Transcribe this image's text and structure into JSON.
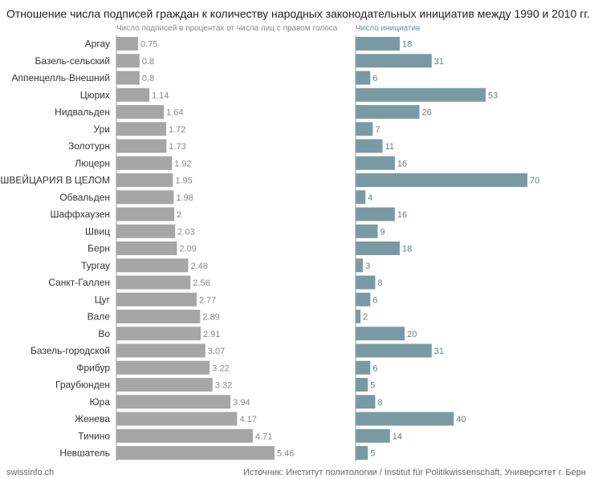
{
  "title": "Отношение числа подписей граждан к количеству народных законодательных инициатив между 1990 и 2010 гг.",
  "footer": {
    "left": "swissinfo.ch",
    "right": "Источник: Институт политологии / Institut für Politikwissenschaft, Университет г. Берн"
  },
  "colors": {
    "left_bar": "#a6a6a6",
    "right_bar": "#7a9aa3",
    "axis": "#999999"
  },
  "chart_data": {
    "type": "bar",
    "orientation": "horizontal",
    "categories": [
      "Аргау",
      "Базель-сельский",
      "Аппенцелль-Внешний",
      "Цюрих",
      "Нидвальден",
      "Ури",
      "Золотурн",
      "Люцерн",
      "ШВЕЙЦАРИЯ В ЦЕЛОМ",
      "Обвальден",
      "Шаффхаузен",
      "Швиц",
      "Берн",
      "Тургау",
      "Санкт-Галлен",
      "Цуг",
      "Вале",
      "Во",
      "Базель-городской",
      "Фрибур",
      "Граубюнден",
      "Юра",
      "Женева",
      "Тичино",
      "Невшатель"
    ],
    "series": [
      {
        "name": "Число подписей в процентах от числа лиц с правом голоса",
        "labels": [
          "0.75",
          "0.8",
          "0.8",
          "1.14",
          "1.64",
          "1.72",
          "1.73",
          "1.92",
          "1.95",
          "1.98",
          "2",
          "2.03",
          "2.09",
          "2.48",
          "2.56",
          "2.77",
          "2.89",
          "2.91",
          "3.07",
          "3.22",
          "3.32",
          "3.94",
          "4.17",
          "4.71",
          "5.46"
        ],
        "values": [
          0.75,
          0.8,
          0.8,
          1.14,
          1.64,
          1.72,
          1.73,
          1.92,
          1.95,
          1.98,
          2,
          2.03,
          2.09,
          2.48,
          2.56,
          2.77,
          2.89,
          2.91,
          3.07,
          3.22,
          3.32,
          3.94,
          4.17,
          4.71,
          5.46
        ],
        "xlim": [
          0,
          5.46
        ]
      },
      {
        "name": "Число инициатив",
        "labels": [
          "18",
          "31",
          "6",
          "53",
          "26",
          "7",
          "11",
          "16",
          "70",
          "4",
          "16",
          "9",
          "18",
          "3",
          "8",
          "6",
          "2",
          "20",
          "31",
          "6",
          "5",
          "8",
          "40",
          "14",
          "5"
        ],
        "values": [
          18,
          31,
          6,
          53,
          26,
          7,
          11,
          16,
          70,
          4,
          16,
          9,
          18,
          3,
          8,
          6,
          2,
          20,
          31,
          6,
          5,
          8,
          40,
          14,
          5
        ],
        "xlim": [
          0,
          70
        ]
      }
    ]
  }
}
